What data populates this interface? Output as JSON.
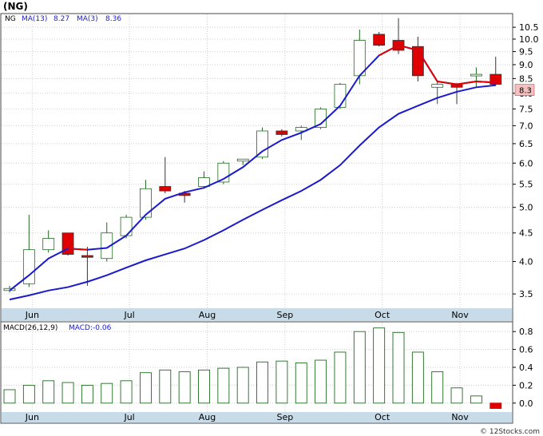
{
  "title": "(NG)",
  "watermark": "© 12Stocks.com",
  "colors": {
    "frame": "#4a4a4a",
    "bg": "#ffffff",
    "grid": "#cfcfcf",
    "axis_band": "#c8dbe8",
    "bull": "#1f6b1f",
    "bear": "#e00000",
    "ma_fast": "#1a1acc",
    "ma_slow_tail": "#e00000",
    "legend_blue": "#1a1acc",
    "price_badge": "#f4c0c0"
  },
  "chart_data": [
    {
      "type": "candlestick",
      "symbol": "NG",
      "legend": [
        {
          "label": "NG"
        },
        {
          "label": "MA(13)",
          "value": "8.27"
        },
        {
          "label": "MA(3)",
          "value": "8.36"
        }
      ],
      "last_price": "8.3",
      "y_ticks": [
        3.5,
        4.0,
        4.5,
        5.0,
        5.5,
        6.0,
        6.5,
        7.0,
        7.5,
        8.0,
        8.5,
        9.0,
        9.5,
        10.0,
        10.5
      ],
      "y_tick_labels": [
        "3.5",
        "4.0",
        "4.5",
        "5.0",
        "5.5",
        "6.0",
        "6.5",
        "7.0",
        "7.5",
        "8.0",
        "8.5",
        "9.0",
        "9.5",
        "10.0",
        "10.5"
      ],
      "ylim": [
        3.3,
        11.0
      ],
      "y_scale": "log",
      "month_labels": [
        {
          "label": "Jun",
          "index": 1
        },
        {
          "label": "Jul",
          "index": 6
        },
        {
          "label": "Aug",
          "index": 10
        },
        {
          "label": "Sep",
          "index": 14
        },
        {
          "label": "Oct",
          "index": 19
        },
        {
          "label": "Nov",
          "index": 23
        }
      ],
      "candles": [
        {
          "o": 3.55,
          "h": 3.62,
          "l": 3.52,
          "c": 3.58
        },
        {
          "o": 3.65,
          "h": 4.85,
          "l": 3.6,
          "c": 4.2
        },
        {
          "o": 4.2,
          "h": 4.55,
          "l": 4.15,
          "c": 4.4
        },
        {
          "o": 4.5,
          "h": 4.5,
          "l": 4.1,
          "c": 4.12
        },
        {
          "o": 4.1,
          "h": 4.25,
          "l": 3.62,
          "c": 4.07
        },
        {
          "o": 4.05,
          "h": 4.7,
          "l": 4.0,
          "c": 4.5
        },
        {
          "o": 4.45,
          "h": 4.85,
          "l": 4.4,
          "c": 4.8
        },
        {
          "o": 4.8,
          "h": 5.6,
          "l": 4.75,
          "c": 5.4
        },
        {
          "o": 5.45,
          "h": 6.15,
          "l": 5.3,
          "c": 5.35
        },
        {
          "o": 5.3,
          "h": 5.35,
          "l": 5.1,
          "c": 5.25
        },
        {
          "o": 5.45,
          "h": 5.8,
          "l": 5.4,
          "c": 5.65
        },
        {
          "o": 5.55,
          "h": 6.05,
          "l": 5.5,
          "c": 6.0
        },
        {
          "o": 6.05,
          "h": 6.1,
          "l": 5.95,
          "c": 6.1
        },
        {
          "o": 6.15,
          "h": 6.95,
          "l": 6.1,
          "c": 6.85
        },
        {
          "o": 6.85,
          "h": 6.9,
          "l": 6.7,
          "c": 6.75
        },
        {
          "o": 6.85,
          "h": 7.0,
          "l": 6.6,
          "c": 6.95
        },
        {
          "o": 6.95,
          "h": 7.55,
          "l": 6.9,
          "c": 7.5
        },
        {
          "o": 7.55,
          "h": 8.35,
          "l": 7.5,
          "c": 8.3
        },
        {
          "o": 8.6,
          "h": 10.4,
          "l": 8.3,
          "c": 9.95
        },
        {
          "o": 10.2,
          "h": 10.3,
          "l": 9.7,
          "c": 9.75
        },
        {
          "o": 9.95,
          "h": 10.9,
          "l": 9.4,
          "c": 9.55
        },
        {
          "o": 9.7,
          "h": 10.1,
          "l": 8.4,
          "c": 8.6
        },
        {
          "o": 8.2,
          "h": 8.4,
          "l": 7.65,
          "c": 8.3
        },
        {
          "o": 8.3,
          "h": 8.35,
          "l": 7.65,
          "c": 8.2
        },
        {
          "o": 8.6,
          "h": 8.9,
          "l": 8.2,
          "c": 8.65
        },
        {
          "o": 8.65,
          "h": 9.3,
          "l": 8.25,
          "c": 8.3
        }
      ],
      "ma13": [
        3.42,
        3.48,
        3.55,
        3.6,
        3.68,
        3.78,
        3.9,
        4.02,
        4.12,
        4.22,
        4.37,
        4.55,
        4.75,
        4.95,
        5.15,
        5.35,
        5.6,
        5.95,
        6.45,
        6.95,
        7.35,
        7.6,
        7.85,
        8.05,
        8.2,
        8.27
      ],
      "ma3": [
        3.55,
        3.78,
        4.05,
        4.22,
        4.2,
        4.23,
        4.45,
        4.85,
        5.18,
        5.32,
        5.42,
        5.62,
        5.9,
        6.3,
        6.6,
        6.8,
        7.05,
        7.6,
        8.6,
        9.35,
        9.75,
        9.55,
        8.4,
        8.3,
        8.4,
        8.36
      ]
    },
    {
      "type": "bar",
      "title": "MACD(26,12,9)",
      "legend_value": "MACD:-0.06",
      "y_ticks": [
        0.0,
        0.2,
        0.4,
        0.6,
        0.8
      ],
      "y_tick_labels": [
        "0.0",
        "0.2",
        "0.4",
        "0.6",
        "0.8"
      ],
      "ylim": [
        -0.1,
        0.9
      ],
      "values": [
        0.15,
        0.2,
        0.25,
        0.23,
        0.2,
        0.22,
        0.25,
        0.34,
        0.37,
        0.35,
        0.37,
        0.39,
        0.4,
        0.46,
        0.47,
        0.45,
        0.48,
        0.57,
        0.8,
        0.84,
        0.79,
        0.57,
        0.35,
        0.17,
        0.08,
        -0.06
      ],
      "month_labels": [
        {
          "label": "Jun",
          "index": 1
        },
        {
          "label": "Jul",
          "index": 6
        },
        {
          "label": "Aug",
          "index": 10
        },
        {
          "label": "Sep",
          "index": 14
        },
        {
          "label": "Oct",
          "index": 19
        },
        {
          "label": "Nov",
          "index": 23
        }
      ]
    }
  ]
}
